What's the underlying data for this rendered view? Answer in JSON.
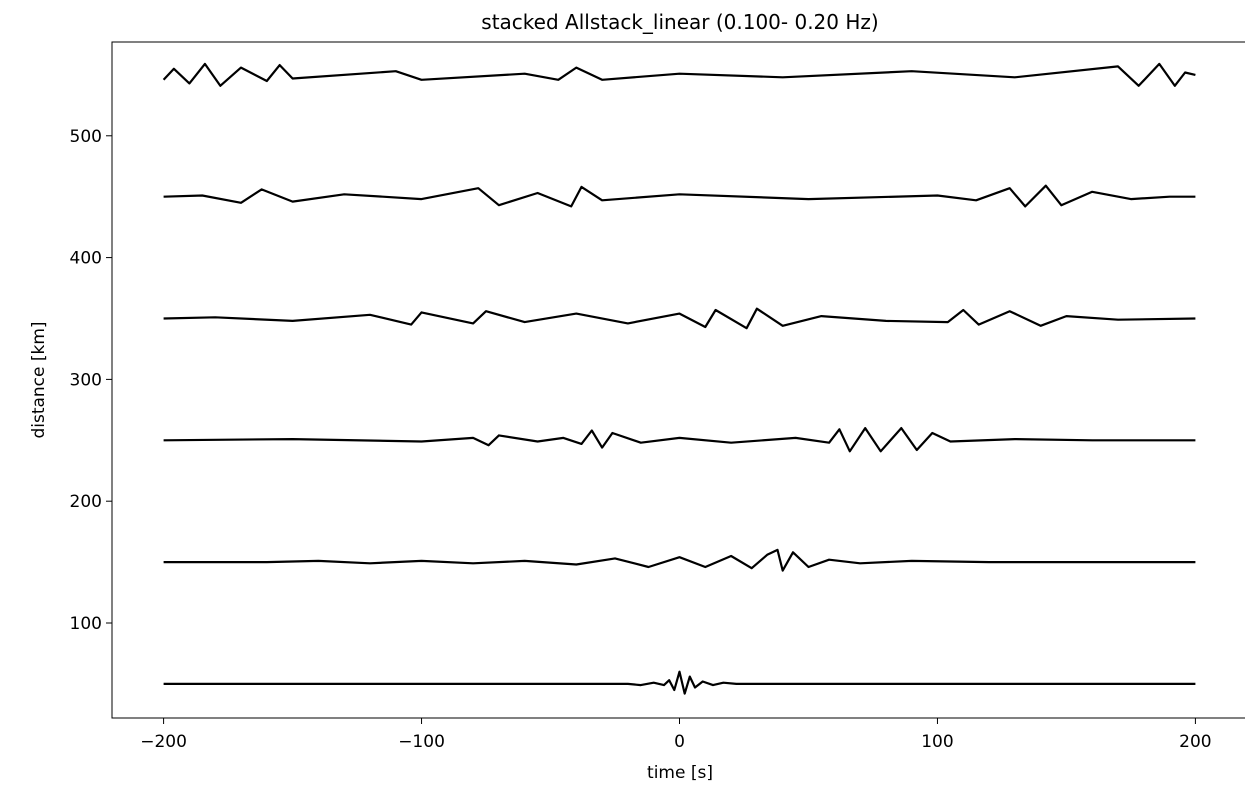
{
  "chart_data": {
    "type": "line",
    "title": "stacked Allstack_linear (0.100- 0.20 Hz)",
    "xlabel": "time [s]",
    "ylabel": "distance [km]",
    "xlim": [
      -220,
      220
    ],
    "ylim": [
      22,
      577
    ],
    "xticks": [
      -200,
      -100,
      0,
      100,
      200
    ],
    "xtick_labels": [
      "−200",
      "−100",
      "0",
      "100",
      "200"
    ],
    "yticks": [
      100,
      200,
      300,
      400,
      500
    ],
    "ytick_labels": [
      "100",
      "200",
      "300",
      "400",
      "500"
    ],
    "grid": false,
    "line_color": "#000000",
    "series": [
      {
        "offset": 50,
        "samples": [
          {
            "t": -200,
            "y": 50
          },
          {
            "t": -20,
            "y": 50
          },
          {
            "t": -15,
            "y": 49
          },
          {
            "t": -10,
            "y": 51
          },
          {
            "t": -6,
            "y": 49
          },
          {
            "t": -4,
            "y": 53
          },
          {
            "t": -2,
            "y": 45
          },
          {
            "t": 0,
            "y": 60
          },
          {
            "t": 2,
            "y": 42
          },
          {
            "t": 4,
            "y": 56
          },
          {
            "t": 6,
            "y": 47
          },
          {
            "t": 9,
            "y": 52
          },
          {
            "t": 13,
            "y": 49
          },
          {
            "t": 17,
            "y": 51
          },
          {
            "t": 22,
            "y": 50
          },
          {
            "t": 200,
            "y": 50
          }
        ]
      },
      {
        "offset": 150,
        "samples": [
          {
            "t": -200,
            "y": 150
          },
          {
            "t": -160,
            "y": 150
          },
          {
            "t": -140,
            "y": 151
          },
          {
            "t": -120,
            "y": 149
          },
          {
            "t": -100,
            "y": 151
          },
          {
            "t": -80,
            "y": 149
          },
          {
            "t": -60,
            "y": 151
          },
          {
            "t": -40,
            "y": 148
          },
          {
            "t": -25,
            "y": 153
          },
          {
            "t": -12,
            "y": 146
          },
          {
            "t": 0,
            "y": 154
          },
          {
            "t": 10,
            "y": 146
          },
          {
            "t": 20,
            "y": 155
          },
          {
            "t": 28,
            "y": 145
          },
          {
            "t": 34,
            "y": 156
          },
          {
            "t": 38,
            "y": 160
          },
          {
            "t": 40,
            "y": 143
          },
          {
            "t": 44,
            "y": 158
          },
          {
            "t": 50,
            "y": 146
          },
          {
            "t": 58,
            "y": 152
          },
          {
            "t": 70,
            "y": 149
          },
          {
            "t": 90,
            "y": 151
          },
          {
            "t": 120,
            "y": 150
          },
          {
            "t": 200,
            "y": 150
          }
        ]
      },
      {
        "offset": 250,
        "samples": [
          {
            "t": -200,
            "y": 250
          },
          {
            "t": -150,
            "y": 251
          },
          {
            "t": -100,
            "y": 249
          },
          {
            "t": -80,
            "y": 252
          },
          {
            "t": -74,
            "y": 246
          },
          {
            "t": -70,
            "y": 254
          },
          {
            "t": -55,
            "y": 249
          },
          {
            "t": -45,
            "y": 252
          },
          {
            "t": -38,
            "y": 247
          },
          {
            "t": -34,
            "y": 258
          },
          {
            "t": -30,
            "y": 244
          },
          {
            "t": -26,
            "y": 256
          },
          {
            "t": -15,
            "y": 248
          },
          {
            "t": 0,
            "y": 252
          },
          {
            "t": 20,
            "y": 248
          },
          {
            "t": 45,
            "y": 252
          },
          {
            "t": 58,
            "y": 248
          },
          {
            "t": 62,
            "y": 259
          },
          {
            "t": 66,
            "y": 241
          },
          {
            "t": 72,
            "y": 260
          },
          {
            "t": 78,
            "y": 241
          },
          {
            "t": 86,
            "y": 260
          },
          {
            "t": 92,
            "y": 242
          },
          {
            "t": 98,
            "y": 256
          },
          {
            "t": 105,
            "y": 249
          },
          {
            "t": 130,
            "y": 251
          },
          {
            "t": 160,
            "y": 250
          },
          {
            "t": 200,
            "y": 250
          }
        ]
      },
      {
        "offset": 350,
        "samples": [
          {
            "t": -200,
            "y": 350
          },
          {
            "t": -180,
            "y": 351
          },
          {
            "t": -150,
            "y": 348
          },
          {
            "t": -120,
            "y": 353
          },
          {
            "t": -104,
            "y": 345
          },
          {
            "t": -100,
            "y": 355
          },
          {
            "t": -80,
            "y": 346
          },
          {
            "t": -75,
            "y": 356
          },
          {
            "t": -60,
            "y": 347
          },
          {
            "t": -40,
            "y": 354
          },
          {
            "t": -20,
            "y": 346
          },
          {
            "t": 0,
            "y": 354
          },
          {
            "t": 10,
            "y": 343
          },
          {
            "t": 14,
            "y": 357
          },
          {
            "t": 26,
            "y": 342
          },
          {
            "t": 30,
            "y": 358
          },
          {
            "t": 40,
            "y": 344
          },
          {
            "t": 55,
            "y": 352
          },
          {
            "t": 80,
            "y": 348
          },
          {
            "t": 104,
            "y": 347
          },
          {
            "t": 110,
            "y": 357
          },
          {
            "t": 116,
            "y": 345
          },
          {
            "t": 128,
            "y": 356
          },
          {
            "t": 140,
            "y": 344
          },
          {
            "t": 150,
            "y": 352
          },
          {
            "t": 170,
            "y": 349
          },
          {
            "t": 200,
            "y": 350
          }
        ]
      },
      {
        "offset": 450,
        "samples": [
          {
            "t": -200,
            "y": 450
          },
          {
            "t": -185,
            "y": 451
          },
          {
            "t": -170,
            "y": 445
          },
          {
            "t": -162,
            "y": 456
          },
          {
            "t": -150,
            "y": 446
          },
          {
            "t": -130,
            "y": 452
          },
          {
            "t": -100,
            "y": 448
          },
          {
            "t": -78,
            "y": 457
          },
          {
            "t": -70,
            "y": 443
          },
          {
            "t": -55,
            "y": 453
          },
          {
            "t": -42,
            "y": 442
          },
          {
            "t": -38,
            "y": 458
          },
          {
            "t": -30,
            "y": 447
          },
          {
            "t": 0,
            "y": 452
          },
          {
            "t": 50,
            "y": 448
          },
          {
            "t": 100,
            "y": 451
          },
          {
            "t": 115,
            "y": 447
          },
          {
            "t": 128,
            "y": 457
          },
          {
            "t": 134,
            "y": 442
          },
          {
            "t": 142,
            "y": 459
          },
          {
            "t": 148,
            "y": 443
          },
          {
            "t": 160,
            "y": 454
          },
          {
            "t": 175,
            "y": 448
          },
          {
            "t": 190,
            "y": 450
          },
          {
            "t": 200,
            "y": 450
          }
        ]
      },
      {
        "offset": 550,
        "samples": [
          {
            "t": -200,
            "y": 546
          },
          {
            "t": -196,
            "y": 555
          },
          {
            "t": -190,
            "y": 543
          },
          {
            "t": -184,
            "y": 559
          },
          {
            "t": -178,
            "y": 541
          },
          {
            "t": -170,
            "y": 556
          },
          {
            "t": -160,
            "y": 545
          },
          {
            "t": -155,
            "y": 558
          },
          {
            "t": -150,
            "y": 547
          },
          {
            "t": -110,
            "y": 553
          },
          {
            "t": -100,
            "y": 546
          },
          {
            "t": -60,
            "y": 551
          },
          {
            "t": -47,
            "y": 546
          },
          {
            "t": -40,
            "y": 556
          },
          {
            "t": -30,
            "y": 546
          },
          {
            "t": 0,
            "y": 551
          },
          {
            "t": 40,
            "y": 548
          },
          {
            "t": 90,
            "y": 553
          },
          {
            "t": 130,
            "y": 548
          },
          {
            "t": 170,
            "y": 557
          },
          {
            "t": 178,
            "y": 541
          },
          {
            "t": 186,
            "y": 559
          },
          {
            "t": 192,
            "y": 541
          },
          {
            "t": 196,
            "y": 552
          },
          {
            "t": 200,
            "y": 550
          }
        ]
      }
    ]
  }
}
